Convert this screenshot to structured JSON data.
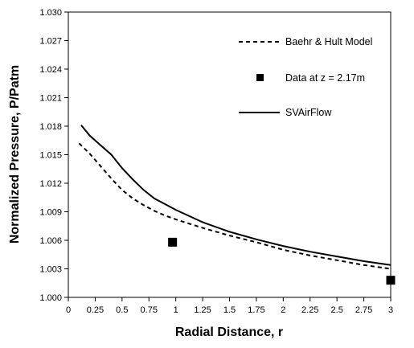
{
  "chart_data": {
    "type": "line",
    "title": "",
    "xlabel": "Radial Distance, r",
    "ylabel": "Normalized Pressure, P/Patm",
    "xlim": [
      0,
      3
    ],
    "ylim": [
      1.0,
      1.03
    ],
    "x_ticks": [
      "0",
      "0.25",
      "0.5",
      "0.75",
      "1",
      "1.25",
      "1.5",
      "1.75",
      "2",
      "2.25",
      "2.5",
      "2.75",
      "3"
    ],
    "y_ticks": [
      "1.000",
      "1.003",
      "1.006",
      "1.009",
      "1.012",
      "1.015",
      "1.018",
      "1.021",
      "1.024",
      "1.027",
      "1.030"
    ],
    "grid": false,
    "legend_position": "top-right",
    "series": [
      {
        "name": "Baehr & Hult Model",
        "style": "dashed",
        "color": "#000000",
        "points": [
          [
            0.1,
            1.0162
          ],
          [
            0.2,
            1.0151
          ],
          [
            0.3,
            1.0138
          ],
          [
            0.4,
            1.0125
          ],
          [
            0.5,
            1.0113
          ],
          [
            0.6,
            1.0104
          ],
          [
            0.7,
            1.0097
          ],
          [
            0.8,
            1.0091
          ],
          [
            0.9,
            1.0086
          ],
          [
            1.0,
            1.0082
          ],
          [
            1.25,
            1.0073
          ],
          [
            1.5,
            1.0065
          ],
          [
            1.75,
            1.0058
          ],
          [
            2.0,
            1.005
          ],
          [
            2.25,
            1.0044
          ],
          [
            2.5,
            1.0039
          ],
          [
            2.75,
            1.0034
          ],
          [
            3.0,
            1.003
          ]
        ]
      },
      {
        "name": "Data at z = 2.17m",
        "style": "marker-square",
        "color": "#000000",
        "points": [
          [
            0.97,
            1.0058
          ],
          [
            3.0,
            1.0018
          ]
        ]
      },
      {
        "name": "SVAirFlow",
        "style": "solid",
        "color": "#000000",
        "points": [
          [
            0.12,
            1.0181
          ],
          [
            0.2,
            1.017
          ],
          [
            0.3,
            1.016
          ],
          [
            0.4,
            1.015
          ],
          [
            0.5,
            1.0136
          ],
          [
            0.6,
            1.0124
          ],
          [
            0.7,
            1.0113
          ],
          [
            0.8,
            1.0104
          ],
          [
            0.9,
            1.0098
          ],
          [
            1.0,
            1.0092
          ],
          [
            1.25,
            1.0079
          ],
          [
            1.5,
            1.0069
          ],
          [
            1.75,
            1.0061
          ],
          [
            2.0,
            1.0054
          ],
          [
            2.25,
            1.0048
          ],
          [
            2.5,
            1.0043
          ],
          [
            2.75,
            1.0038
          ],
          [
            3.0,
            1.0034
          ]
        ]
      }
    ]
  }
}
